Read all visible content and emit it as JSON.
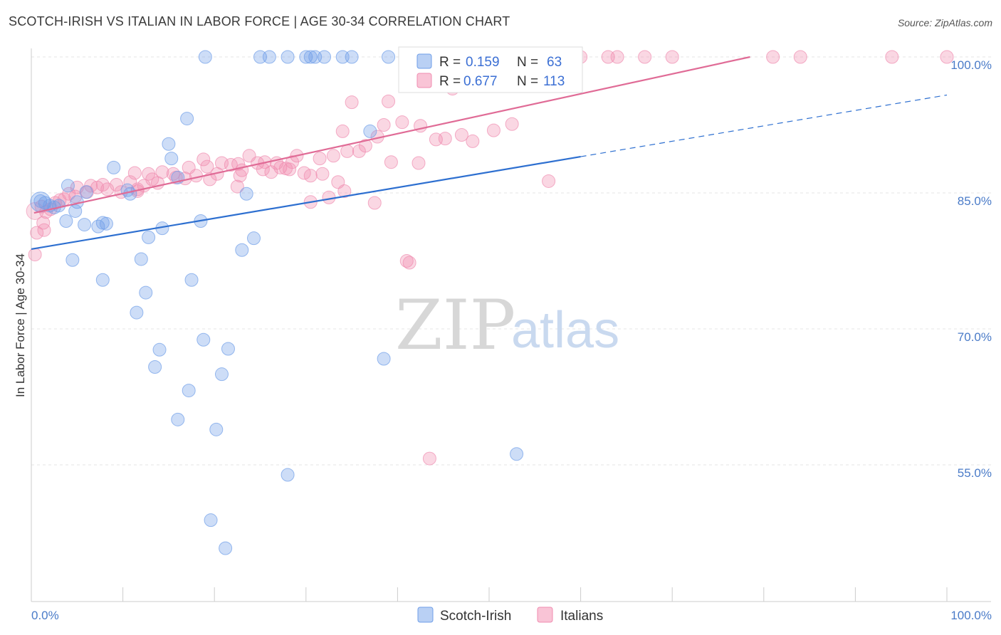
{
  "header": {
    "title": "SCOTCH-IRISH VS ITALIAN IN LABOR FORCE | AGE 30-34 CORRELATION CHART",
    "source": "Source: ZipAtlas.com"
  },
  "watermark": {
    "zip": "ZIP",
    "atlas": "atlas"
  },
  "colors": {
    "scotch": "#6f9ee8",
    "italian": "#f08db0",
    "scotch_line": "#2d6fd0",
    "italian_line": "#e06b96"
  },
  "chart_data": {
    "type": "scatter",
    "title": "SCOTCH-IRISH VS ITALIAN IN LABOR FORCE | AGE 30-34 CORRELATION CHART",
    "xlabel": "",
    "ylabel": "In Labor Force | Age 30-34",
    "xlim": [
      0,
      100
    ],
    "ylim": [
      43,
      102
    ],
    "x_tick_labels": [
      "0.0%",
      "100.0%"
    ],
    "y_ticks": [
      55,
      70,
      85,
      100
    ],
    "y_tick_labels": [
      "55.0%",
      "70.0%",
      "85.0%",
      "100.0%"
    ],
    "grid": true,
    "legend_position": "top-center",
    "legend": [
      {
        "name": "Scotch-Irish",
        "r_label": "R =",
        "r": "0.159",
        "n_label": "N =",
        "n": "63"
      },
      {
        "name": "Italians",
        "r_label": "R =",
        "r": "0.677",
        "n_label": "N =",
        "n": "113"
      }
    ],
    "series": [
      {
        "name": "Scotch-Irish",
        "trend": {
          "x": [
            0,
            60
          ],
          "y": [
            78.8,
            89.0
          ],
          "dashed_to": [
            100,
            95.8
          ]
        },
        "points": [
          [
            19,
            100
          ],
          [
            25,
            100
          ],
          [
            26,
            100
          ],
          [
            28,
            100
          ],
          [
            30,
            100
          ],
          [
            30.5,
            100
          ],
          [
            31,
            100
          ],
          [
            32,
            100
          ],
          [
            34,
            100
          ],
          [
            35,
            100
          ],
          [
            39,
            100
          ],
          [
            17,
            93.2
          ],
          [
            37,
            91.8
          ],
          [
            15,
            90.4
          ],
          [
            15.3,
            88.8
          ],
          [
            9,
            87.8
          ],
          [
            16,
            86.7
          ],
          [
            4,
            85.8
          ],
          [
            6,
            85.1
          ],
          [
            10.5,
            85.3
          ],
          [
            10.8,
            84.9
          ],
          [
            1,
            84.1
          ],
          [
            1.5,
            83.9
          ],
          [
            2,
            83.6
          ],
          [
            2.5,
            83.4
          ],
          [
            3,
            83.6
          ],
          [
            5,
            84.0
          ],
          [
            4.8,
            83.0
          ],
          [
            3.8,
            81.9
          ],
          [
            5.8,
            81.5
          ],
          [
            7.3,
            81.3
          ],
          [
            7.8,
            81.7
          ],
          [
            8.2,
            81.6
          ],
          [
            18.5,
            81.9
          ],
          [
            14.3,
            81.1
          ],
          [
            12.8,
            80.1
          ],
          [
            24.3,
            80.0
          ],
          [
            23,
            78.7
          ],
          [
            4.5,
            77.6
          ],
          [
            12,
            77.7
          ],
          [
            7.8,
            75.4
          ],
          [
            17.5,
            75.4
          ],
          [
            12.5,
            74.0
          ],
          [
            11.5,
            71.8
          ],
          [
            18.8,
            68.8
          ],
          [
            14,
            67.7
          ],
          [
            21.5,
            67.8
          ],
          [
            38.5,
            66.7
          ],
          [
            13.5,
            65.8
          ],
          [
            20.8,
            65.0
          ],
          [
            17.2,
            63.2
          ],
          [
            16,
            60.0
          ],
          [
            20.2,
            58.9
          ],
          [
            53,
            56.2
          ],
          [
            28,
            53.9
          ],
          [
            19.6,
            48.9
          ],
          [
            21.2,
            45.8
          ],
          [
            23.5,
            84.9
          ]
        ]
      },
      {
        "name": "Italians",
        "trend": {
          "x": [
            0.3,
            78.5
          ],
          "y": [
            82.8,
            100
          ]
        },
        "points": [
          [
            41,
            100
          ],
          [
            42,
            100
          ],
          [
            44,
            100
          ],
          [
            46,
            100
          ],
          [
            48,
            100
          ],
          [
            50,
            100
          ],
          [
            53,
            100
          ],
          [
            55,
            100
          ],
          [
            60,
            100
          ],
          [
            63,
            100
          ],
          [
            64,
            100
          ],
          [
            67,
            100
          ],
          [
            70,
            100
          ],
          [
            81,
            100
          ],
          [
            84,
            100
          ],
          [
            94,
            100
          ],
          [
            100,
            100
          ],
          [
            44.8,
            98.5
          ],
          [
            35,
            95.0
          ],
          [
            39,
            95.1
          ],
          [
            46,
            96.5
          ],
          [
            40.5,
            92.8
          ],
          [
            37.8,
            91.2
          ],
          [
            38.5,
            92.5
          ],
          [
            42.5,
            92.4
          ],
          [
            45.2,
            91.0
          ],
          [
            47,
            91.4
          ],
          [
            50.5,
            91.9
          ],
          [
            52.5,
            92.6
          ],
          [
            34,
            91.8
          ],
          [
            36.5,
            90.2
          ],
          [
            33,
            89.1
          ],
          [
            34.5,
            89.6
          ],
          [
            29,
            89.1
          ],
          [
            31.5,
            88.8
          ],
          [
            39.3,
            88.4
          ],
          [
            42.3,
            88.3
          ],
          [
            18.8,
            88.7
          ],
          [
            20.8,
            88.3
          ],
          [
            23.8,
            89.1
          ],
          [
            24.7,
            88.3
          ],
          [
            25.5,
            88.4
          ],
          [
            26.8,
            88.3
          ],
          [
            21.8,
            88.1
          ],
          [
            22.6,
            88.2
          ],
          [
            27.2,
            87.8
          ],
          [
            28.2,
            87.6
          ],
          [
            17.2,
            87.8
          ],
          [
            19.2,
            87.9
          ],
          [
            23,
            87.5
          ],
          [
            29.8,
            87.2
          ],
          [
            11.3,
            87.2
          ],
          [
            12.8,
            87.1
          ],
          [
            14.3,
            87.3
          ],
          [
            15.5,
            87.1
          ],
          [
            16.8,
            86.6
          ],
          [
            18,
            86.9
          ],
          [
            20.3,
            87.1
          ],
          [
            25.3,
            87.6
          ],
          [
            26.2,
            87.3
          ],
          [
            22.8,
            86.9
          ],
          [
            9.3,
            85.9
          ],
          [
            10.8,
            86.2
          ],
          [
            12.3,
            85.8
          ],
          [
            13.8,
            86.1
          ],
          [
            15.8,
            86.7
          ],
          [
            7.8,
            85.9
          ],
          [
            8.3,
            85.4
          ],
          [
            9.8,
            85.1
          ],
          [
            11.6,
            85.4
          ],
          [
            6.5,
            85.8
          ],
          [
            7.2,
            85.6
          ],
          [
            5,
            85.6
          ],
          [
            6.1,
            85.1
          ],
          [
            4.8,
            84.6
          ],
          [
            4.1,
            84.9
          ],
          [
            3.6,
            84.3
          ],
          [
            2.6,
            83.9
          ],
          [
            3.1,
            84.2
          ],
          [
            2.1,
            83.2
          ],
          [
            1.6,
            82.9
          ],
          [
            1.1,
            83.5
          ],
          [
            1.3,
            81.7
          ],
          [
            1.4,
            80.9
          ],
          [
            0.6,
            80.6
          ],
          [
            0.4,
            78.2
          ],
          [
            30.5,
            86.9
          ],
          [
            31.8,
            87.1
          ],
          [
            22.5,
            85.7
          ],
          [
            33.5,
            86.2
          ],
          [
            34.2,
            85.2
          ],
          [
            32.5,
            84.5
          ],
          [
            30.5,
            84.0
          ],
          [
            37.5,
            83.9
          ],
          [
            56.5,
            86.3
          ],
          [
            41,
            77.5
          ],
          [
            41.3,
            77.3
          ],
          [
            43.5,
            55.7
          ],
          [
            44.2,
            90.9
          ],
          [
            48.2,
            90.7
          ],
          [
            53.8,
            100
          ],
          [
            58.5,
            100
          ],
          [
            35.8,
            89.6
          ],
          [
            28.5,
            88.4
          ],
          [
            27.8,
            87.7
          ],
          [
            19.5,
            86.5
          ],
          [
            11.6,
            85.2
          ],
          [
            13.2,
            86.5
          ]
        ]
      }
    ]
  }
}
